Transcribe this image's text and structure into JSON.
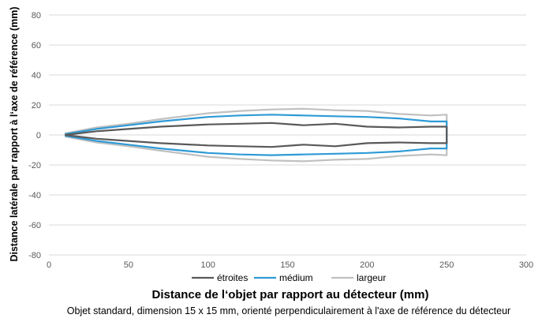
{
  "chart_data": {
    "type": "line",
    "xlabel": "Distance de l‘objet par rapport au détecteur (mm)",
    "ylabel": "Distance latérale par rapport à l‘axe de référence (mm)",
    "caption": "Objet standard, dimension 15 x 15 mm, orienté perpendiculairement à l'axe de référence du détecteur",
    "xlim": [
      0,
      300
    ],
    "ylim": [
      -80,
      80
    ],
    "xticks": [
      "0",
      "50",
      "100",
      "150",
      "200",
      "250",
      "300"
    ],
    "yticks": [
      "80",
      "60",
      "40",
      "20",
      "0",
      "-20",
      "-40",
      "-60",
      "-80"
    ],
    "xtick_values": [
      0,
      50,
      100,
      150,
      200,
      250,
      300
    ],
    "ytick_values": [
      80,
      60,
      40,
      20,
      0,
      -20,
      -40,
      -60,
      -80
    ],
    "grid": "horizontal",
    "legend_position": "bottom",
    "series": [
      {
        "name": "étroites",
        "color": "#595959",
        "x": [
          10,
          30,
          50,
          70,
          100,
          120,
          140,
          160,
          180,
          200,
          220,
          240,
          250,
          250,
          240,
          220,
          200,
          180,
          160,
          140,
          120,
          100,
          70,
          50,
          30,
          10
        ],
        "y": [
          0,
          2.5,
          4,
          5.5,
          7,
          7.5,
          8,
          6.5,
          7.5,
          5.5,
          5,
          5.5,
          5.5,
          -5.5,
          -5.5,
          -5,
          -5.5,
          -7.5,
          -6.5,
          -8,
          -7.5,
          -7,
          -5.5,
          -4,
          -2.5,
          0
        ]
      },
      {
        "name": "médium",
        "color": "#2e9ad6",
        "x": [
          10,
          30,
          50,
          70,
          100,
          120,
          140,
          160,
          180,
          200,
          220,
          240,
          250,
          250,
          240,
          220,
          200,
          180,
          160,
          140,
          120,
          100,
          70,
          50,
          30,
          10
        ],
        "y": [
          0.5,
          4,
          6.5,
          9,
          12,
          13,
          13.5,
          13,
          12.5,
          12,
          11,
          9,
          9,
          -9,
          -9,
          -11,
          -12,
          -12.5,
          -13,
          -13.5,
          -13,
          -12,
          -9,
          -6.5,
          -4,
          -0.5
        ]
      },
      {
        "name": "largeur",
        "color": "#c0c0c0",
        "x": [
          10,
          30,
          50,
          70,
          100,
          120,
          140,
          160,
          180,
          200,
          220,
          240,
          250,
          250,
          240,
          220,
          200,
          180,
          160,
          140,
          120,
          100,
          70,
          50,
          30,
          10
        ],
        "y": [
          1,
          5,
          7.5,
          10.5,
          14.5,
          16,
          17,
          17.5,
          16.5,
          16,
          14,
          13,
          13.5,
          -13.5,
          -13,
          -14,
          -16,
          -16.5,
          -17.5,
          -17,
          -16,
          -14.5,
          -10.5,
          -7.5,
          -5,
          -1
        ]
      }
    ]
  }
}
